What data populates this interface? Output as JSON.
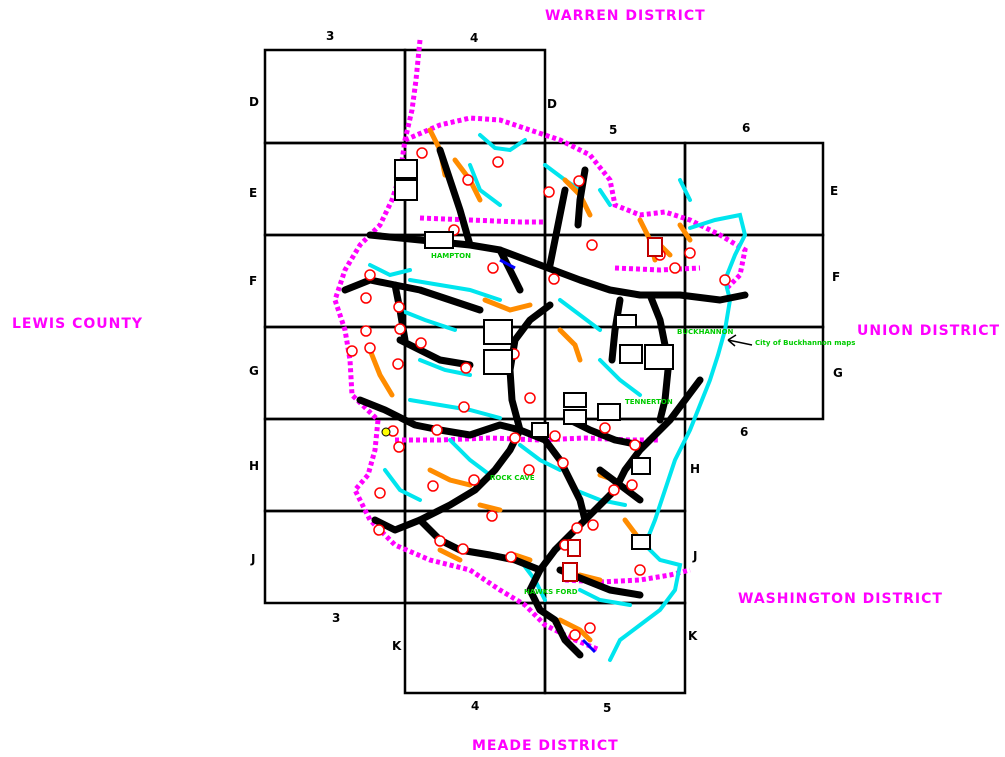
{
  "districts": {
    "north": "WARREN DISTRICT",
    "west": "LEWIS COUNTY",
    "east": "UNION DISTRICT",
    "southeast": "WASHINGTON DISTRICT",
    "south": "MEADE DISTRICT"
  },
  "grid": {
    "columns_top": [
      "3",
      "4"
    ],
    "columns_mid": [
      "5",
      "6"
    ],
    "column_east_lower": "6",
    "columns_bottom_left": "3",
    "columns_bottom": [
      "4",
      "5"
    ],
    "rows": [
      "D",
      "E",
      "F",
      "G",
      "H",
      "J",
      "K"
    ]
  },
  "places": {
    "buckhannon": "BUCKHANNON",
    "city_note": "City of Buckhannon maps",
    "tennerton": "TENNERTON",
    "hampton": "HAMPTON",
    "rock_cave": "ROCK CAVE",
    "hawks_ford": "HAWKS FORD"
  },
  "colors": {
    "district_label": "#ff00ff",
    "boundary": "#ff00ff",
    "streams": "#00e5ee",
    "roads": "#000000",
    "secondary_roads": "#ff8c00",
    "place_label": "#00cc00",
    "road_marker": "#ff0000"
  }
}
